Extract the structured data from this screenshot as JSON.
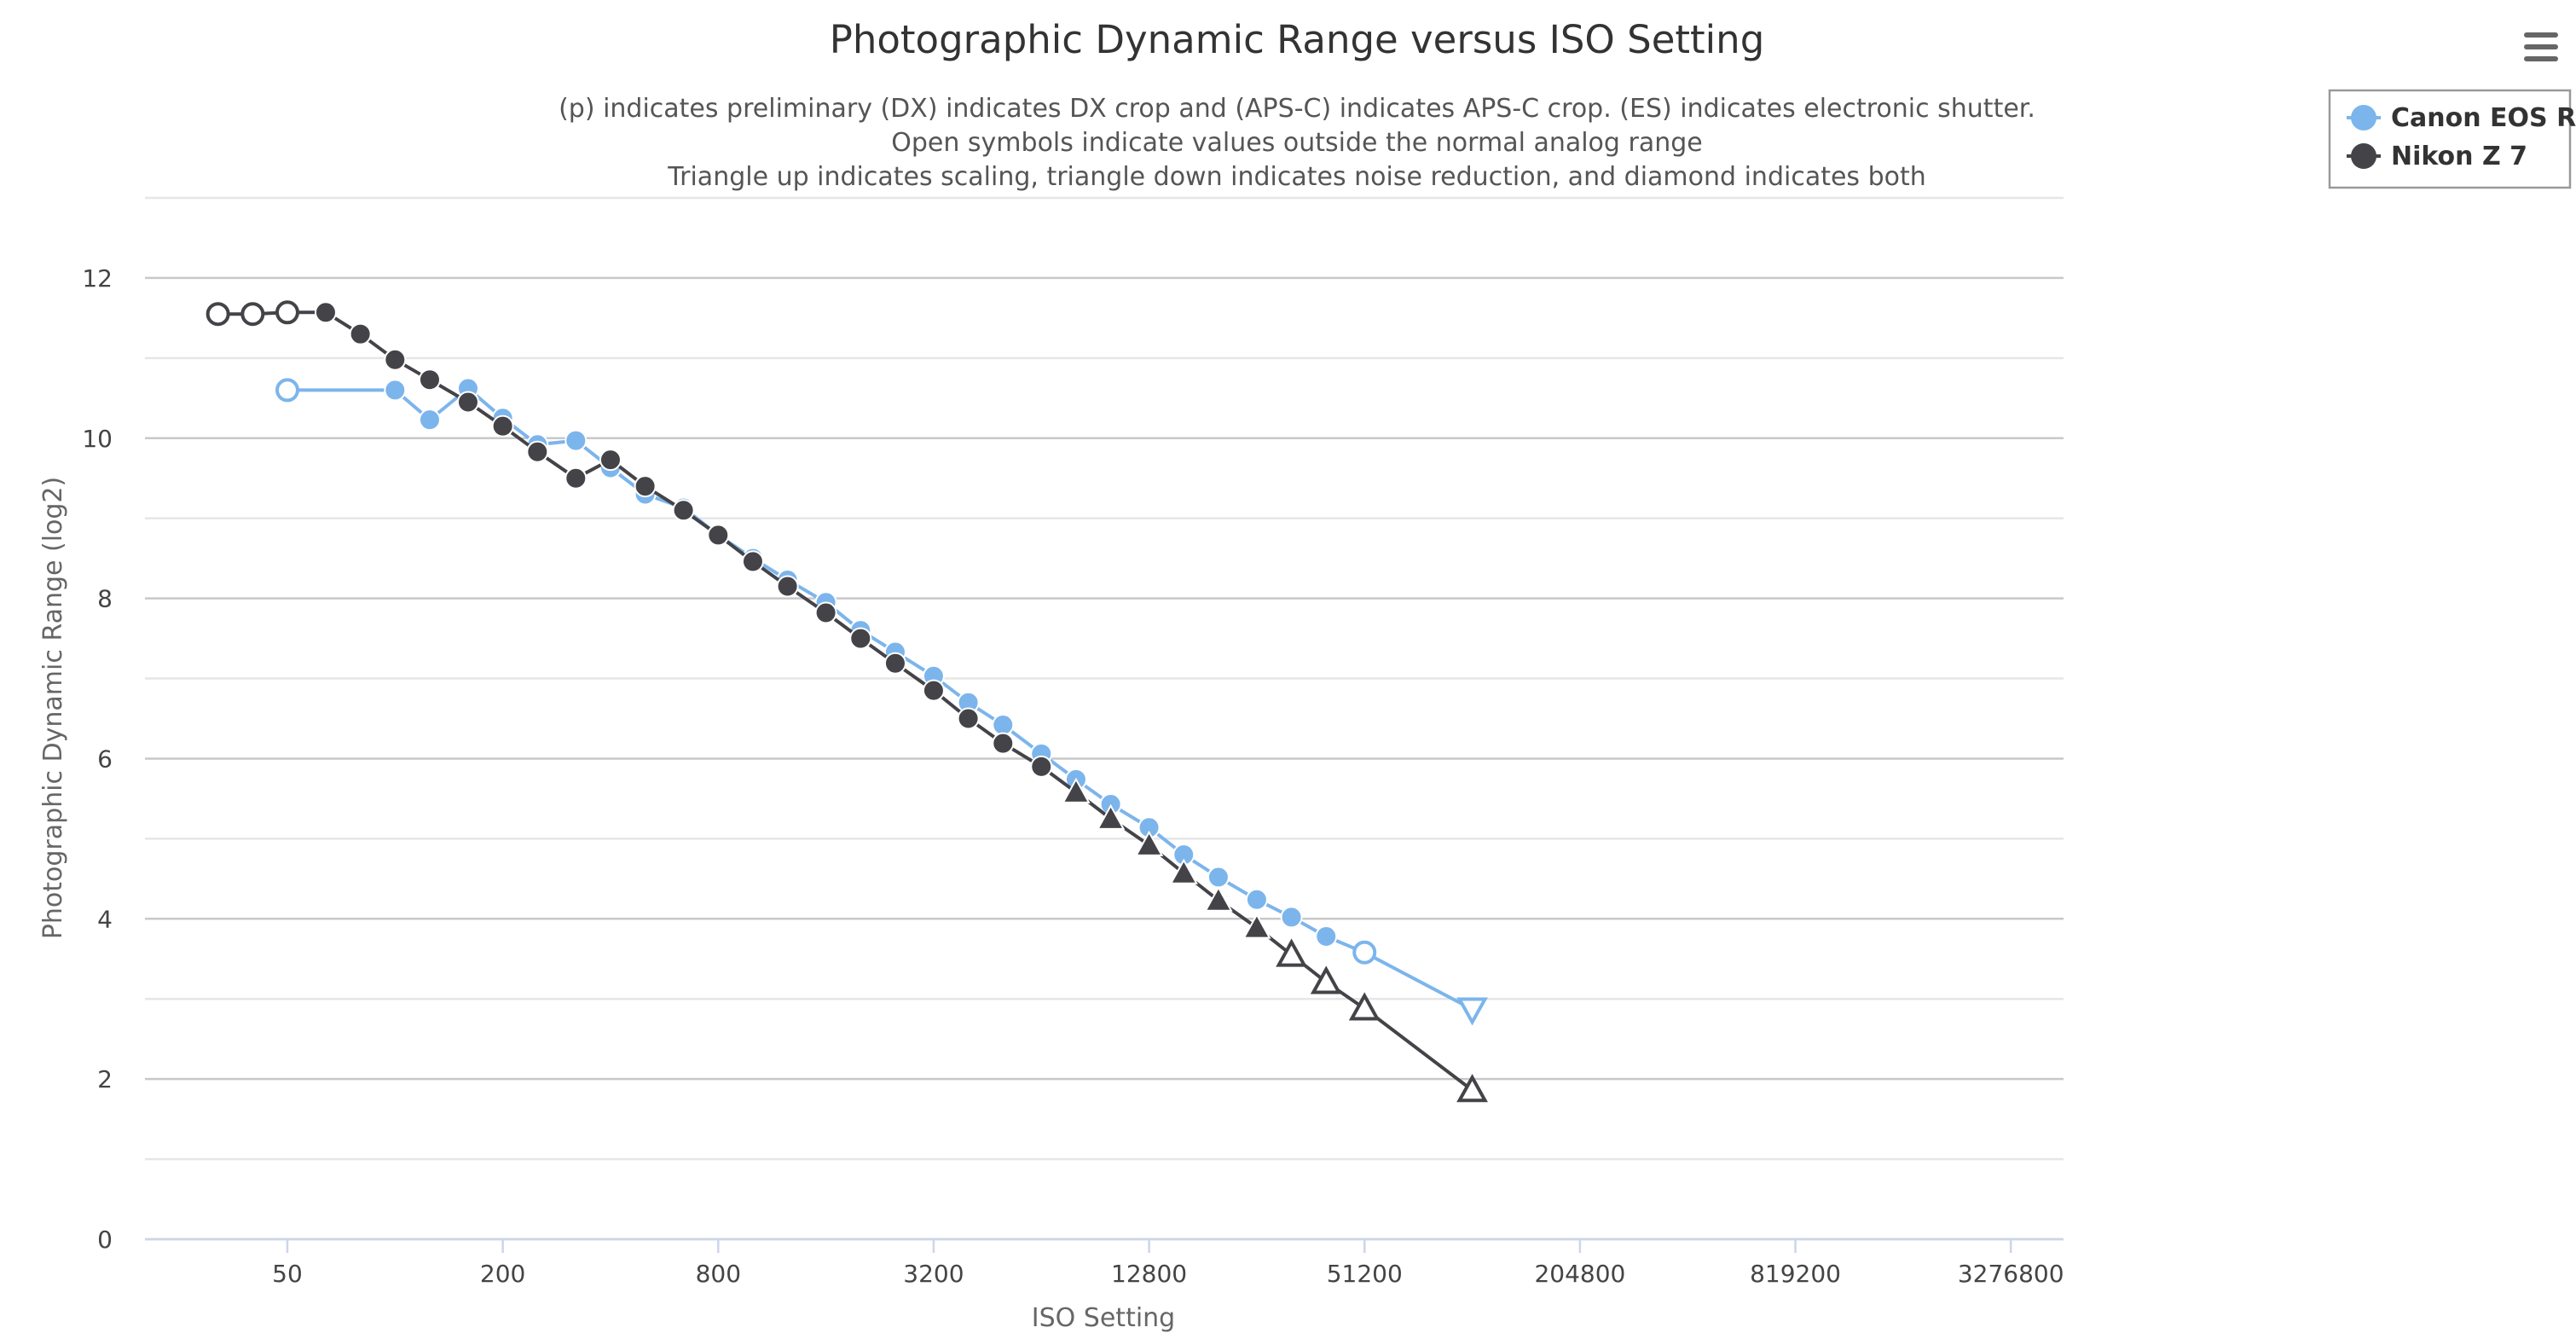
{
  "chart_data": {
    "type": "line",
    "title": "Photographic Dynamic Range versus ISO Setting",
    "subtitle": [
      "(p) indicates preliminary (DX) indicates DX crop and (APS-C) indicates APS-C crop. (ES) indicates electronic shutter.",
      "Open symbols indicate values outside the normal analog range",
      "Triangle up indicates scaling, triangle down indicates noise reduction, and diamond indicates both"
    ],
    "xlabel": "ISO Setting",
    "ylabel": "Photographic Dynamic Range (log2)",
    "x_scale": "log2",
    "xlim": [
      20,
      4600000
    ],
    "ylim": [
      0,
      13
    ],
    "x_ticks": [
      50,
      200,
      800,
      3200,
      12800,
      51200,
      204800,
      819200,
      3276800
    ],
    "x_tick_labels": [
      "50",
      "200",
      "800",
      "3200",
      "12800",
      "51200",
      "204800",
      "819200",
      "3276800"
    ],
    "y_ticks": [
      0,
      2,
      4,
      6,
      8,
      10,
      12
    ],
    "y_tick_labels": [
      "0",
      "2",
      "4",
      "6",
      "8",
      "10",
      "12"
    ],
    "grid": true,
    "legend_position": "top-right",
    "series": [
      {
        "name": "Canon EOS R",
        "color": "#7cb5ec",
        "points": [
          {
            "iso": 50,
            "dr": 10.6,
            "marker": "circle-open"
          },
          {
            "iso": 100,
            "dr": 10.6,
            "marker": "circle"
          },
          {
            "iso": 125,
            "dr": 10.23,
            "marker": "circle"
          },
          {
            "iso": 160,
            "dr": 10.62,
            "marker": "circle"
          },
          {
            "iso": 200,
            "dr": 10.25,
            "marker": "circle"
          },
          {
            "iso": 250,
            "dr": 9.92,
            "marker": "circle"
          },
          {
            "iso": 320,
            "dr": 9.97,
            "marker": "circle"
          },
          {
            "iso": 400,
            "dr": 9.63,
            "marker": "circle"
          },
          {
            "iso": 500,
            "dr": 9.3,
            "marker": "circle"
          },
          {
            "iso": 640,
            "dr": 9.13,
            "marker": "circle"
          },
          {
            "iso": 800,
            "dr": 8.79,
            "marker": "circle"
          },
          {
            "iso": 1000,
            "dr": 8.5,
            "marker": "circle"
          },
          {
            "iso": 1250,
            "dr": 8.23,
            "marker": "circle"
          },
          {
            "iso": 1600,
            "dr": 7.95,
            "marker": "circle"
          },
          {
            "iso": 2000,
            "dr": 7.6,
            "marker": "circle"
          },
          {
            "iso": 2500,
            "dr": 7.33,
            "marker": "circle"
          },
          {
            "iso": 3200,
            "dr": 7.03,
            "marker": "circle"
          },
          {
            "iso": 4000,
            "dr": 6.7,
            "marker": "circle"
          },
          {
            "iso": 5000,
            "dr": 6.42,
            "marker": "circle"
          },
          {
            "iso": 6400,
            "dr": 6.06,
            "marker": "circle"
          },
          {
            "iso": 8000,
            "dr": 5.74,
            "marker": "circle"
          },
          {
            "iso": 10000,
            "dr": 5.43,
            "marker": "circle"
          },
          {
            "iso": 12800,
            "dr": 5.14,
            "marker": "circle"
          },
          {
            "iso": 16000,
            "dr": 4.8,
            "marker": "circle"
          },
          {
            "iso": 20000,
            "dr": 4.52,
            "marker": "circle"
          },
          {
            "iso": 25600,
            "dr": 4.24,
            "marker": "circle"
          },
          {
            "iso": 32000,
            "dr": 4.02,
            "marker": "circle"
          },
          {
            "iso": 40000,
            "dr": 3.78,
            "marker": "circle"
          },
          {
            "iso": 51200,
            "dr": 3.58,
            "marker": "circle-open"
          },
          {
            "iso": 102400,
            "dr": 2.87,
            "marker": "triangle-down-open"
          }
        ]
      },
      {
        "name": "Nikon Z 7",
        "color": "#434348",
        "points": [
          {
            "iso": 32,
            "dr": 11.55,
            "marker": "circle-open"
          },
          {
            "iso": 40,
            "dr": 11.55,
            "marker": "circle-open"
          },
          {
            "iso": 50,
            "dr": 11.57,
            "marker": "circle-open"
          },
          {
            "iso": 64,
            "dr": 11.57,
            "marker": "circle"
          },
          {
            "iso": 80,
            "dr": 11.3,
            "marker": "circle"
          },
          {
            "iso": 100,
            "dr": 10.98,
            "marker": "circle"
          },
          {
            "iso": 125,
            "dr": 10.73,
            "marker": "circle"
          },
          {
            "iso": 160,
            "dr": 10.45,
            "marker": "circle"
          },
          {
            "iso": 200,
            "dr": 10.15,
            "marker": "circle"
          },
          {
            "iso": 250,
            "dr": 9.83,
            "marker": "circle"
          },
          {
            "iso": 320,
            "dr": 9.5,
            "marker": "circle"
          },
          {
            "iso": 400,
            "dr": 9.73,
            "marker": "circle"
          },
          {
            "iso": 500,
            "dr": 9.4,
            "marker": "circle"
          },
          {
            "iso": 640,
            "dr": 9.1,
            "marker": "circle"
          },
          {
            "iso": 800,
            "dr": 8.79,
            "marker": "circle"
          },
          {
            "iso": 1000,
            "dr": 8.46,
            "marker": "circle"
          },
          {
            "iso": 1250,
            "dr": 8.15,
            "marker": "circle"
          },
          {
            "iso": 1600,
            "dr": 7.82,
            "marker": "circle"
          },
          {
            "iso": 2000,
            "dr": 7.5,
            "marker": "circle"
          },
          {
            "iso": 2500,
            "dr": 7.19,
            "marker": "circle"
          },
          {
            "iso": 3200,
            "dr": 6.85,
            "marker": "circle"
          },
          {
            "iso": 4000,
            "dr": 6.5,
            "marker": "circle"
          },
          {
            "iso": 5000,
            "dr": 6.19,
            "marker": "circle"
          },
          {
            "iso": 6400,
            "dr": 5.9,
            "marker": "circle"
          },
          {
            "iso": 8000,
            "dr": 5.58,
            "marker": "triangle-up"
          },
          {
            "iso": 10000,
            "dr": 5.25,
            "marker": "triangle-up"
          },
          {
            "iso": 12800,
            "dr": 4.92,
            "marker": "triangle-up"
          },
          {
            "iso": 16000,
            "dr": 4.57,
            "marker": "triangle-up"
          },
          {
            "iso": 20000,
            "dr": 4.23,
            "marker": "triangle-up"
          },
          {
            "iso": 25600,
            "dr": 3.89,
            "marker": "triangle-up"
          },
          {
            "iso": 32000,
            "dr": 3.55,
            "marker": "triangle-up-open"
          },
          {
            "iso": 40000,
            "dr": 3.21,
            "marker": "triangle-up-open"
          },
          {
            "iso": 51200,
            "dr": 2.88,
            "marker": "triangle-up-open"
          },
          {
            "iso": 102400,
            "dr": 1.86,
            "marker": "triangle-up-open"
          }
        ]
      }
    ]
  },
  "menu_icon": "hamburger-menu-icon"
}
